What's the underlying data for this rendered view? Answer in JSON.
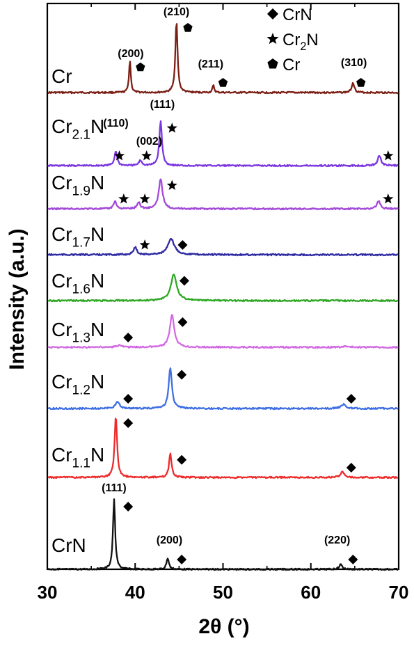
{
  "chart_data": {
    "type": "line",
    "xlabel": "2θ (°)",
    "ylabel": "Intensity (a.u.)",
    "xlim": [
      30,
      70
    ],
    "x_ticks": [
      "30",
      "40",
      "50",
      "60",
      "70"
    ],
    "y_ticks": false,
    "grid": false,
    "legend_position": "top-right",
    "legend": [
      {
        "marker": "diamond",
        "name": "CrN"
      },
      {
        "marker": "star",
        "name": "Cr2N",
        "base": "Cr",
        "sub": "2",
        "tail": "N"
      },
      {
        "marker": "pentagon",
        "name": "Cr"
      }
    ],
    "series": [
      {
        "name": "Cr",
        "base": "Cr",
        "sub": "",
        "tail": "",
        "color": "#7B1E14",
        "peaks": [
          {
            "x": 39.4,
            "h": 0.45,
            "w": 0.12
          },
          {
            "x": 44.7,
            "h": 1.0,
            "w": 0.15
          },
          {
            "x": 48.9,
            "h": 0.1,
            "w": 0.12
          },
          {
            "x": 64.8,
            "h": 0.14,
            "w": 0.18
          }
        ],
        "markers": [
          {
            "type": "pentagon",
            "x": 40.6
          },
          {
            "type": "pentagon",
            "x": 46.0
          },
          {
            "type": "pentagon",
            "x": 50.0
          },
          {
            "type": "pentagon",
            "x": 65.7
          }
        ],
        "hkl": [
          {
            "text": "(200)",
            "x": 39.5
          },
          {
            "text": "(210)",
            "x": 44.7
          },
          {
            "text": "(211)",
            "x": 48.6
          },
          {
            "text": "(310)",
            "x": 64.9
          }
        ]
      },
      {
        "name": "Cr2.1N",
        "base": "Cr",
        "sub": "2.1",
        "tail": "N",
        "color": "#7B35E0",
        "peaks": [
          {
            "x": 37.8,
            "h": 0.28,
            "w": 0.18
          },
          {
            "x": 40.6,
            "h": 0.1,
            "w": 0.2
          },
          {
            "x": 42.9,
            "h": 0.85,
            "w": 0.18
          },
          {
            "x": 67.8,
            "h": 0.2,
            "w": 0.22
          }
        ],
        "markers": [
          {
            "type": "star",
            "x": 38.2
          },
          {
            "type": "star",
            "x": 41.3
          },
          {
            "type": "star",
            "x": 44.2
          },
          {
            "type": "star",
            "x": 68.8
          }
        ],
        "hkl": [
          {
            "text": "(110)",
            "x": 37.8
          },
          {
            "text": "(002)",
            "x": 41.6
          },
          {
            "text": "(111)",
            "x": 43.1
          }
        ]
      },
      {
        "name": "Cr1.9N",
        "base": "Cr",
        "sub": "1.9",
        "tail": "N",
        "color": "#A34AD9",
        "peaks": [
          {
            "x": 37.7,
            "h": 0.2,
            "w": 0.18
          },
          {
            "x": 40.4,
            "h": 0.16,
            "w": 0.2
          },
          {
            "x": 42.9,
            "h": 0.75,
            "w": 0.25
          },
          {
            "x": 67.7,
            "h": 0.2,
            "w": 0.22
          }
        ],
        "markers": [
          {
            "type": "star",
            "x": 38.7
          },
          {
            "type": "star",
            "x": 41.1
          },
          {
            "type": "star",
            "x": 44.2
          },
          {
            "type": "star",
            "x": 68.8
          }
        ],
        "hkl": []
      },
      {
        "name": "Cr1.7N",
        "base": "Cr",
        "sub": "1.7",
        "tail": "N",
        "color": "#2E2AA3",
        "peaks": [
          {
            "x": 40.0,
            "h": 0.22,
            "w": 0.22
          },
          {
            "x": 44.1,
            "h": 0.45,
            "w": 0.45
          }
        ],
        "markers": [
          {
            "type": "star",
            "x": 41.1
          },
          {
            "type": "diamond",
            "x": 45.4
          }
        ],
        "hkl": []
      },
      {
        "name": "Cr1.6N",
        "base": "Cr",
        "sub": "1.6",
        "tail": "N",
        "color": "#2EA823",
        "peaks": [
          {
            "x": 44.4,
            "h": 0.62,
            "w": 0.4
          }
        ],
        "markers": [
          {
            "type": "diamond",
            "x": 45.6
          }
        ],
        "hkl": []
      },
      {
        "name": "Cr1.3N",
        "base": "Cr",
        "sub": "1.3",
        "tail": "N",
        "color": "#D26BE3",
        "peaks": [
          {
            "x": 38.2,
            "h": 0.05,
            "w": 0.3
          },
          {
            "x": 44.2,
            "h": 0.72,
            "w": 0.3
          },
          {
            "x": 64.0,
            "h": 0.02,
            "w": 0.4
          }
        ],
        "markers": [
          {
            "type": "diamond",
            "x": 39.2
          },
          {
            "type": "diamond",
            "x": 45.4
          }
        ],
        "hkl": []
      },
      {
        "name": "Cr1.2N",
        "base": "Cr",
        "sub": "1.2",
        "tail": "N",
        "color": "#3F6FE3",
        "peaks": [
          {
            "x": 38.0,
            "h": 0.14,
            "w": 0.25
          },
          {
            "x": 44.0,
            "h": 0.78,
            "w": 0.22
          },
          {
            "x": 63.7,
            "h": 0.08,
            "w": 0.3
          }
        ],
        "markers": [
          {
            "type": "diamond",
            "x": 39.2
          },
          {
            "type": "diamond",
            "x": 45.3
          },
          {
            "type": "diamond",
            "x": 64.6
          }
        ],
        "hkl": []
      },
      {
        "name": "Cr1.1N",
        "base": "Cr",
        "sub": "1.1",
        "tail": "N",
        "color": "#EE2A2A",
        "peaks": [
          {
            "x": 37.8,
            "h": 1.0,
            "w": 0.17
          },
          {
            "x": 44.0,
            "h": 0.4,
            "w": 0.17
          },
          {
            "x": 63.6,
            "h": 0.1,
            "w": 0.25
          }
        ],
        "markers": [
          {
            "type": "diamond",
            "x": 39.2
          },
          {
            "type": "diamond",
            "x": 45.3
          },
          {
            "type": "diamond",
            "x": 64.6
          }
        ],
        "hkl": []
      },
      {
        "name": "CrN",
        "base": "CrN",
        "sub": "",
        "tail": "",
        "color": "#111111",
        "peaks": [
          {
            "x": 37.6,
            "h": 1.0,
            "w": 0.15
          },
          {
            "x": 43.7,
            "h": 0.16,
            "w": 0.17
          },
          {
            "x": 63.4,
            "h": 0.07,
            "w": 0.22
          }
        ],
        "markers": [
          {
            "type": "diamond",
            "x": 39.2
          },
          {
            "type": "diamond",
            "x": 45.3
          },
          {
            "type": "diamond",
            "x": 64.8
          }
        ],
        "hkl": [
          {
            "text": "(111)",
            "x": 37.6
          },
          {
            "text": "(200)",
            "x": 43.9
          },
          {
            "text": "(220)",
            "x": 63.0
          }
        ]
      }
    ]
  }
}
